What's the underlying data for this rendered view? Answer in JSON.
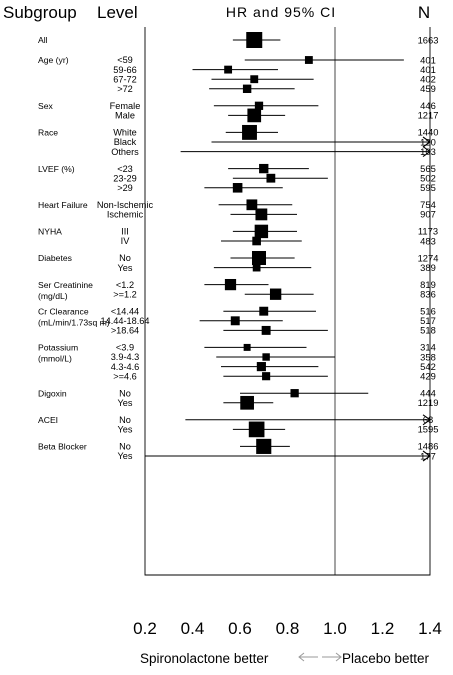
{
  "chart_data": {
    "type": "forest",
    "columns": {
      "subgroup": "Subgroup",
      "level": "Level",
      "plot": "HR and 95% CI",
      "n": "N"
    },
    "xlim": [
      0.2,
      1.4
    ],
    "xticks": [
      "0.2",
      "0.4",
      "0.6",
      "0.8",
      "1.0",
      "1.2",
      "1.4"
    ],
    "reference_line": 1.0,
    "footer": {
      "left": "Spironolactone better",
      "right": "Placebo better"
    },
    "groups": [
      {
        "name": [
          "All"
        ],
        "rows": [
          {
            "level": "",
            "hr": 0.66,
            "lo": 0.57,
            "hi": 0.77,
            "n": "1663",
            "weight": 1663
          }
        ]
      },
      {
        "name": [
          "Age (yr)"
        ],
        "rows": [
          {
            "level": "<59",
            "hr": 0.89,
            "lo": 0.62,
            "hi": 1.29,
            "n": "401",
            "weight": 401
          },
          {
            "level": "59-66",
            "hr": 0.55,
            "lo": 0.4,
            "hi": 0.76,
            "n": "401",
            "weight": 401
          },
          {
            "level": "67-72",
            "hr": 0.66,
            "lo": 0.48,
            "hi": 0.91,
            "n": "402",
            "weight": 402
          },
          {
            "level": ">72",
            "hr": 0.63,
            "lo": 0.47,
            "hi": 0.83,
            "n": "459",
            "weight": 459
          }
        ]
      },
      {
        "name": [
          "Sex"
        ],
        "rows": [
          {
            "level": "Female",
            "hr": 0.68,
            "lo": 0.49,
            "hi": 0.93,
            "n": "446",
            "weight": 446
          },
          {
            "level": "Male",
            "hr": 0.66,
            "lo": 0.55,
            "hi": 0.79,
            "n": "1217",
            "weight": 1217
          }
        ]
      },
      {
        "name": [
          "Race"
        ],
        "rows": [
          {
            "level": "White",
            "hr": 0.64,
            "lo": 0.54,
            "hi": 0.76,
            "n": "1440",
            "weight": 1440
          },
          {
            "level": "Black",
            "hr": null,
            "lo": 0.48,
            "hi": 1.4,
            "n": "120",
            "weight": 120,
            "arrow": true
          },
          {
            "level": "Others",
            "hr": null,
            "lo": 0.35,
            "hi": 1.4,
            "n": "103",
            "weight": 103,
            "arrow": true
          }
        ]
      },
      {
        "name": [
          "LVEF (%)"
        ],
        "rows": [
          {
            "level": "<23",
            "hr": 0.7,
            "lo": 0.55,
            "hi": 0.89,
            "n": "565",
            "weight": 565
          },
          {
            "level": "23-29",
            "hr": 0.73,
            "lo": 0.57,
            "hi": 0.97,
            "n": "502",
            "weight": 502
          },
          {
            "level": ">29",
            "hr": 0.59,
            "lo": 0.45,
            "hi": 0.78,
            "n": "595",
            "weight": 595
          }
        ]
      },
      {
        "name": [
          "Heart Failure"
        ],
        "rows": [
          {
            "level": "Non-Ischemic",
            "hr": 0.65,
            "lo": 0.51,
            "hi": 0.82,
            "n": "754",
            "weight": 754
          },
          {
            "level": "Ischemic",
            "hr": 0.69,
            "lo": 0.56,
            "hi": 0.84,
            "n": "907",
            "weight": 907
          }
        ]
      },
      {
        "name": [
          "NYHA"
        ],
        "rows": [
          {
            "level": "III",
            "hr": 0.69,
            "lo": 0.57,
            "hi": 0.84,
            "n": "1173",
            "weight": 1173
          },
          {
            "level": "IV",
            "hr": 0.67,
            "lo": 0.52,
            "hi": 0.86,
            "n": "483",
            "weight": 483
          }
        ]
      },
      {
        "name": [
          "Diabetes"
        ],
        "rows": [
          {
            "level": "No",
            "hr": 0.68,
            "lo": 0.56,
            "hi": 0.83,
            "n": "1274",
            "weight": 1274
          },
          {
            "level": "Yes",
            "hr": 0.67,
            "lo": 0.49,
            "hi": 0.9,
            "n": "389",
            "weight": 389
          }
        ]
      },
      {
        "name": [
          "Ser Creatinine",
          "(mg/dL)"
        ],
        "rows": [
          {
            "level": "<1.2",
            "hr": 0.56,
            "lo": 0.45,
            "hi": 0.72,
            "n": "819",
            "weight": 819
          },
          {
            "level": ">=1.2",
            "hr": 0.75,
            "lo": 0.62,
            "hi": 0.91,
            "n": "836",
            "weight": 836
          }
        ]
      },
      {
        "name": [
          "Cr Clearance",
          "(mL/min/1.73sq m)"
        ],
        "rows": [
          {
            "level": "<14.44",
            "hr": 0.7,
            "lo": 0.53,
            "hi": 0.92,
            "n": "516",
            "weight": 516
          },
          {
            "level": "14.44-18.64",
            "hr": 0.58,
            "lo": 0.43,
            "hi": 0.78,
            "n": "517",
            "weight": 517
          },
          {
            "level": ">18.64",
            "hr": 0.71,
            "lo": 0.53,
            "hi": 0.97,
            "n": "518",
            "weight": 518
          }
        ]
      },
      {
        "name": [
          "Potassium",
          "(mmol/L)"
        ],
        "rows": [
          {
            "level": "<3.9",
            "hr": 0.63,
            "lo": 0.45,
            "hi": 0.88,
            "n": "314",
            "weight": 314
          },
          {
            "level": "3.9-4.3",
            "hr": 0.71,
            "lo": 0.5,
            "hi": 1.0,
            "n": "358",
            "weight": 358
          },
          {
            "level": "4.3-4.6",
            "hr": 0.69,
            "lo": 0.52,
            "hi": 0.93,
            "n": "542",
            "weight": 542
          },
          {
            "level": ">=4.6",
            "hr": 0.71,
            "lo": 0.53,
            "hi": 0.97,
            "n": "429",
            "weight": 429
          }
        ]
      },
      {
        "name": [
          "Digoxin"
        ],
        "rows": [
          {
            "level": "No",
            "hr": 0.83,
            "lo": 0.6,
            "hi": 1.14,
            "n": "444",
            "weight": 444
          },
          {
            "level": "Yes",
            "hr": 0.63,
            "lo": 0.53,
            "hi": 0.74,
            "n": "1219",
            "weight": 1219
          }
        ]
      },
      {
        "name": [
          "ACEI"
        ],
        "rows": [
          {
            "level": "No",
            "hr": null,
            "lo": 0.37,
            "hi": 1.4,
            "n": "68",
            "weight": 68,
            "arrow": true
          },
          {
            "level": "Yes",
            "hr": 0.67,
            "lo": 0.57,
            "hi": 0.79,
            "n": "1595",
            "weight": 1595
          }
        ]
      },
      {
        "name": [
          "Beta Blocker"
        ],
        "rows": [
          {
            "level": "No",
            "hr": 0.7,
            "lo": 0.6,
            "hi": 0.81,
            "n": "1486",
            "weight": 1486
          },
          {
            "level": "Yes",
            "hr": null,
            "lo": 0.2,
            "hi": 1.4,
            "n": "177",
            "weight": 177,
            "arrow": true
          }
        ]
      }
    ]
  }
}
